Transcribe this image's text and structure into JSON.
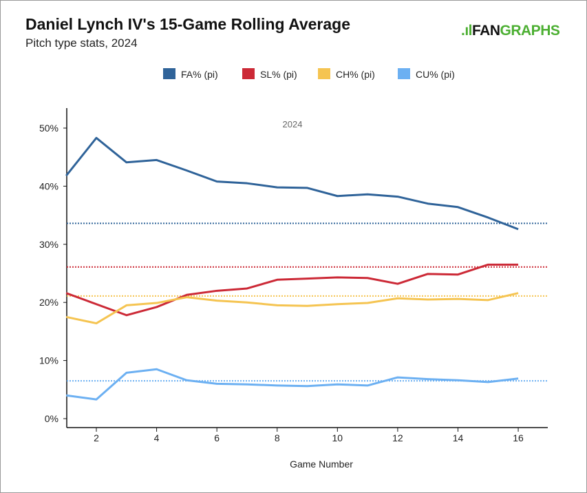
{
  "header": {
    "title": "Daniel Lynch IV's 15-Game Rolling Average",
    "subtitle": "Pitch type stats, 2024",
    "logo_text": "FANGRAPHS",
    "logo_fan": "FAN",
    "logo_graphs": "GRAPHS"
  },
  "chart_data": {
    "type": "line",
    "title": "Daniel Lynch IV's 15-Game Rolling Average",
    "subtitle": "Pitch type stats, 2024",
    "annotation": "2024",
    "xlabel": "Game Number",
    "ylabel": "",
    "xlim": [
      1,
      17
    ],
    "ylim": [
      0,
      53
    ],
    "xticks": [
      2,
      4,
      6,
      8,
      10,
      12,
      14,
      16
    ],
    "yticks": [
      0,
      10,
      20,
      30,
      40,
      50
    ],
    "ytick_labels": [
      "0%",
      "10%",
      "20%",
      "30%",
      "40%",
      "50%"
    ],
    "legend_position": "top",
    "x": [
      1,
      2,
      3,
      4,
      5,
      6,
      7,
      8,
      9,
      10,
      11,
      12,
      13,
      14,
      15,
      16
    ],
    "series": [
      {
        "name": "FA% (pi)",
        "color": "#2f6399",
        "values": [
          41.8,
          48.3,
          44.1,
          44.5,
          42.7,
          40.8,
          40.5,
          39.8,
          39.7,
          38.3,
          38.6,
          38.2,
          37.0,
          36.4,
          34.6,
          32.6
        ],
        "season_avg": 33.6
      },
      {
        "name": "SL% (pi)",
        "color": "#cc2936",
        "values": [
          21.6,
          19.7,
          17.8,
          19.2,
          21.3,
          22.0,
          22.4,
          23.9,
          24.1,
          24.3,
          24.2,
          23.2,
          24.9,
          24.8,
          26.5,
          26.5
        ],
        "season_avg": 26.1
      },
      {
        "name": "CH% (pi)",
        "color": "#f5c451",
        "values": [
          17.5,
          16.4,
          19.5,
          19.9,
          20.9,
          20.3,
          20.0,
          19.5,
          19.4,
          19.7,
          19.9,
          20.7,
          20.5,
          20.6,
          20.4,
          21.6
        ],
        "season_avg": 21.1
      },
      {
        "name": "CU% (pi)",
        "color": "#6cb0f2",
        "values": [
          4.0,
          3.3,
          7.9,
          8.5,
          6.6,
          6.0,
          5.9,
          5.7,
          5.6,
          5.9,
          5.7,
          7.1,
          6.8,
          6.6,
          6.3,
          6.9
        ],
        "season_avg": 6.5
      }
    ]
  }
}
